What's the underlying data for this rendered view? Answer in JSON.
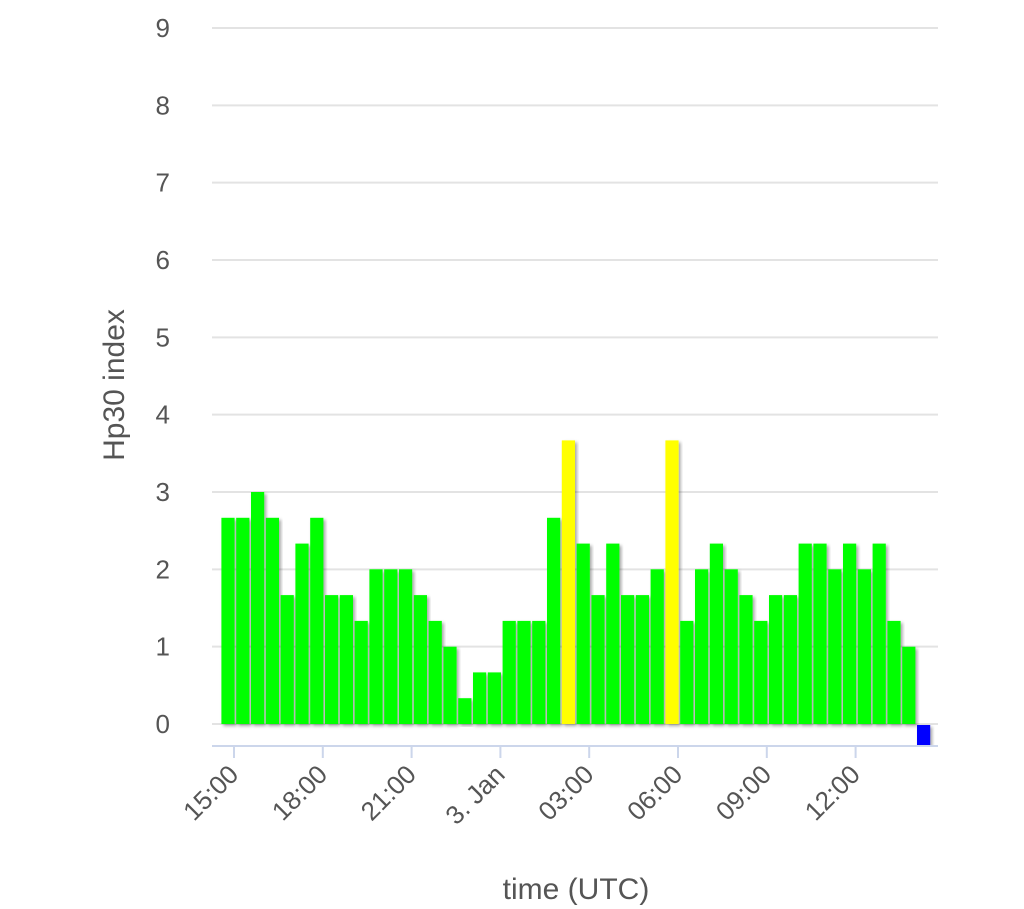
{
  "chart_data": {
    "type": "bar",
    "title": "",
    "xlabel": "time (UTC)",
    "ylabel": "Hp30 index",
    "ylim": [
      0,
      9
    ],
    "yticks": [
      "0",
      "1",
      "2",
      "3",
      "4",
      "5",
      "6",
      "7",
      "8",
      "9"
    ],
    "xticks": [
      "15:00",
      "18:00",
      "21:00",
      "3. Jan",
      "03:00",
      "06:00",
      "09:00",
      "12:00"
    ],
    "grid": true,
    "interval_minutes": 30,
    "colors": {
      "normal": "#00ff00",
      "elevated": "#ffff00",
      "current": "#0000ff"
    },
    "bars": [
      {
        "time": "2 Jan 14:45",
        "value": 2.667,
        "level": "normal"
      },
      {
        "time": "2 Jan 15:15",
        "value": 2.667,
        "level": "normal"
      },
      {
        "time": "2 Jan 15:45",
        "value": 3.0,
        "level": "normal"
      },
      {
        "time": "2 Jan 16:15",
        "value": 2.667,
        "level": "normal"
      },
      {
        "time": "2 Jan 16:45",
        "value": 1.667,
        "level": "normal"
      },
      {
        "time": "2 Jan 17:15",
        "value": 2.333,
        "level": "normal"
      },
      {
        "time": "2 Jan 17:45",
        "value": 2.667,
        "level": "normal"
      },
      {
        "time": "2 Jan 18:15",
        "value": 1.667,
        "level": "normal"
      },
      {
        "time": "2 Jan 18:45",
        "value": 1.667,
        "level": "normal"
      },
      {
        "time": "2 Jan 19:15",
        "value": 1.333,
        "level": "normal"
      },
      {
        "time": "2 Jan 19:45",
        "value": 2.0,
        "level": "normal"
      },
      {
        "time": "2 Jan 20:15",
        "value": 2.0,
        "level": "normal"
      },
      {
        "time": "2 Jan 20:45",
        "value": 2.0,
        "level": "normal"
      },
      {
        "time": "2 Jan 21:15",
        "value": 1.667,
        "level": "normal"
      },
      {
        "time": "2 Jan 21:45",
        "value": 1.333,
        "level": "normal"
      },
      {
        "time": "2 Jan 22:15",
        "value": 1.0,
        "level": "normal"
      },
      {
        "time": "2 Jan 22:45",
        "value": 0.333,
        "level": "normal"
      },
      {
        "time": "2 Jan 23:15",
        "value": 0.667,
        "level": "normal"
      },
      {
        "time": "2 Jan 23:45",
        "value": 0.667,
        "level": "normal"
      },
      {
        "time": "3 Jan 00:15",
        "value": 1.333,
        "level": "normal"
      },
      {
        "time": "3 Jan 00:45",
        "value": 1.333,
        "level": "normal"
      },
      {
        "time": "3 Jan 01:15",
        "value": 1.333,
        "level": "normal"
      },
      {
        "time": "3 Jan 01:45",
        "value": 2.667,
        "level": "normal"
      },
      {
        "time": "3 Jan 02:15",
        "value": 3.667,
        "level": "elevated"
      },
      {
        "time": "3 Jan 02:45",
        "value": 2.333,
        "level": "normal"
      },
      {
        "time": "3 Jan 03:15",
        "value": 1.667,
        "level": "normal"
      },
      {
        "time": "3 Jan 03:45",
        "value": 2.333,
        "level": "normal"
      },
      {
        "time": "3 Jan 04:15",
        "value": 1.667,
        "level": "normal"
      },
      {
        "time": "3 Jan 04:45",
        "value": 1.667,
        "level": "normal"
      },
      {
        "time": "3 Jan 05:15",
        "value": 2.0,
        "level": "normal"
      },
      {
        "time": "3 Jan 05:45",
        "value": 3.667,
        "level": "elevated"
      },
      {
        "time": "3 Jan 06:15",
        "value": 1.333,
        "level": "normal"
      },
      {
        "time": "3 Jan 06:45",
        "value": 2.0,
        "level": "normal"
      },
      {
        "time": "3 Jan 07:15",
        "value": 2.333,
        "level": "normal"
      },
      {
        "time": "3 Jan 07:45",
        "value": 2.0,
        "level": "normal"
      },
      {
        "time": "3 Jan 08:15",
        "value": 1.667,
        "level": "normal"
      },
      {
        "time": "3 Jan 08:45",
        "value": 1.333,
        "level": "normal"
      },
      {
        "time": "3 Jan 09:15",
        "value": 1.667,
        "level": "normal"
      },
      {
        "time": "3 Jan 09:45",
        "value": 1.667,
        "level": "normal"
      },
      {
        "time": "3 Jan 10:15",
        "value": 2.333,
        "level": "normal"
      },
      {
        "time": "3 Jan 10:45",
        "value": 2.333,
        "level": "normal"
      },
      {
        "time": "3 Jan 11:15",
        "value": 2.0,
        "level": "normal"
      },
      {
        "time": "3 Jan 11:45",
        "value": 2.333,
        "level": "normal"
      },
      {
        "time": "3 Jan 12:15",
        "value": 2.0,
        "level": "normal"
      },
      {
        "time": "3 Jan 12:45",
        "value": 2.333,
        "level": "normal"
      },
      {
        "time": "3 Jan 13:15",
        "value": 1.333,
        "level": "normal"
      },
      {
        "time": "3 Jan 13:45",
        "value": 1.0,
        "level": "normal"
      },
      {
        "time": "3 Jan 14:15",
        "value": 0,
        "level": "current"
      }
    ]
  }
}
